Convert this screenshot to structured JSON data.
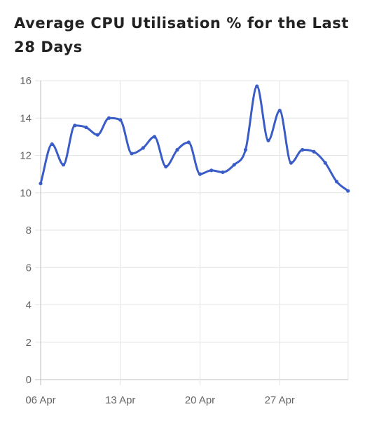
{
  "chart_data": {
    "type": "line",
    "title": "Average CPU Utilisation % for the Last 28 Days",
    "xlabel": "",
    "ylabel": "",
    "ylim": [
      0,
      16
    ],
    "y_ticks": [
      0,
      2,
      4,
      6,
      8,
      10,
      12,
      14,
      16
    ],
    "x_tick_labels": [
      "06 Apr",
      "13 Apr",
      "20 Apr",
      "27 Apr"
    ],
    "grid": true,
    "legend": "none",
    "line_color": "#3a5cc6",
    "series": [
      {
        "x": [
          "06 Apr",
          "07 Apr",
          "08 Apr",
          "09 Apr",
          "10 Apr",
          "11 Apr",
          "12 Apr",
          "13 Apr",
          "14 Apr",
          "15 Apr",
          "16 Apr",
          "17 Apr",
          "18 Apr",
          "19 Apr",
          "20 Apr",
          "21 Apr",
          "22 Apr",
          "23 Apr",
          "24 Apr",
          "25 Apr",
          "26 Apr",
          "27 Apr",
          "28 Apr",
          "29 Apr",
          "30 Apr",
          "01 May",
          "02 May",
          "03 May"
        ],
        "values": [
          10.5,
          12.6,
          11.5,
          13.6,
          13.5,
          13.1,
          14.0,
          13.9,
          12.1,
          12.4,
          13.0,
          11.4,
          12.3,
          12.7,
          11.0,
          11.2,
          11.1,
          11.5,
          12.3,
          15.7,
          12.8,
          14.4,
          11.6,
          12.3,
          12.2,
          11.6,
          10.6,
          10.1
        ]
      }
    ]
  }
}
